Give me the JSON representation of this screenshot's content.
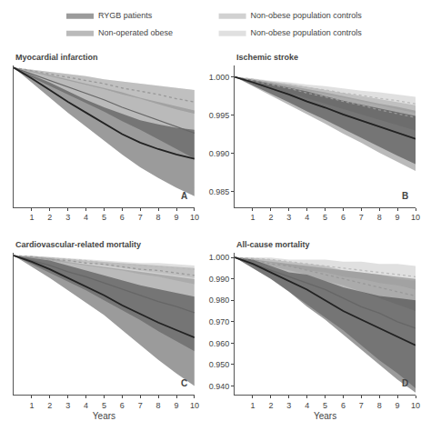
{
  "chart_data": [
    {
      "type": "line",
      "title": "Myocardial infarction",
      "annotations": [
        "A"
      ],
      "legend": "top",
      "grid": false,
      "tick_labels": "x",
      "x": [
        0,
        1,
        2,
        3,
        4,
        5,
        6,
        7,
        8,
        9,
        10
      ],
      "xlim": [
        0,
        10
      ],
      "xticks": [
        1,
        2,
        3,
        4,
        5,
        6,
        7,
        8,
        9,
        10
      ],
      "ylim": [
        0.87,
        1.002
      ],
      "series": [
        {
          "name": "RYGB patients",
          "color": "#222222",
          "line_style": "solid",
          "values": [
            1.0,
            0.99,
            0.979,
            0.968,
            0.958,
            0.948,
            0.938,
            0.93,
            0.924,
            0.919,
            0.915
          ],
          "lower": [
            1.0,
            0.986,
            0.972,
            0.958,
            0.945,
            0.932,
            0.919,
            0.907,
            0.897,
            0.888,
            0.88
          ],
          "upper": [
            1.0,
            0.993,
            0.986,
            0.978,
            0.97,
            0.963,
            0.957,
            0.951,
            0.947,
            0.944,
            0.942
          ]
        },
        {
          "name": "Non-obese population controls",
          "color": "#999999",
          "line_style": "dotted",
          "values": [
            1.0,
            0.997,
            0.994,
            0.991,
            0.988,
            0.985,
            0.981,
            0.978,
            0.975,
            0.971,
            0.968
          ],
          "lower": [
            1.0,
            0.996,
            0.992,
            0.988,
            0.984,
            0.98,
            0.975,
            0.971,
            0.966,
            0.961,
            0.957
          ],
          "upper": [
            1.0,
            0.998,
            0.996,
            0.994,
            0.992,
            0.989,
            0.987,
            0.985,
            0.983,
            0.981,
            0.979
          ]
        },
        {
          "name": "Non-operated obese",
          "color": "#666666",
          "line_style": "solid",
          "values": [
            1.0,
            0.994,
            0.988,
            0.982,
            0.976,
            0.97,
            0.963,
            0.957,
            0.951,
            0.945,
            0.939
          ],
          "lower": [
            1.0,
            0.991,
            0.983,
            0.975,
            0.967,
            0.959,
            0.95,
            0.942,
            0.933,
            0.924,
            0.915
          ],
          "upper": [
            1.0,
            0.997,
            0.993,
            0.989,
            0.985,
            0.981,
            0.977,
            0.972,
            0.968,
            0.964,
            0.96
          ]
        },
        {
          "name": "Non-obese population controls",
          "color": "#bbbbbb",
          "line_style": "dotted",
          "values": [
            1.0,
            0.997,
            0.994,
            0.991,
            0.988,
            0.985,
            0.981,
            0.978,
            0.975,
            0.971,
            0.968
          ],
          "lower": [
            1.0,
            0.996,
            0.992,
            0.988,
            0.984,
            0.98,
            0.975,
            0.971,
            0.966,
            0.961,
            0.957
          ],
          "upper": [
            1.0,
            0.998,
            0.996,
            0.994,
            0.992,
            0.989,
            0.987,
            0.985,
            0.983,
            0.981,
            0.979
          ]
        }
      ]
    },
    {
      "type": "line",
      "title": "Ischemic stroke",
      "annotations": [
        "B"
      ],
      "grid": false,
      "x": [
        0,
        1,
        2,
        3,
        4,
        5,
        6,
        7,
        8,
        9,
        10
      ],
      "xlim": [
        0,
        10
      ],
      "xticks": [
        1,
        2,
        3,
        4,
        5,
        6,
        7,
        8,
        9,
        10
      ],
      "ylim": [
        0.983,
        1.0015
      ],
      "yticks": [
        {
          "value": 1.0,
          "label": "1.000"
        },
        0.995,
        {
          "value": 0.99,
          "label": "0.990"
        },
        0.985
      ],
      "series": [
        {
          "name": "RYGB patients",
          "color": "#222222",
          "line_style": "solid",
          "values": [
            1.0,
            0.9993,
            0.9985,
            0.9977,
            0.9968,
            0.996,
            0.9951,
            0.9943,
            0.9935,
            0.9927,
            0.9919
          ],
          "lower": [
            1.0,
            0.9989,
            0.9978,
            0.9967,
            0.9955,
            0.9944,
            0.9932,
            0.992,
            0.9908,
            0.9897,
            0.9886
          ],
          "upper": [
            1.0,
            0.9996,
            0.9991,
            0.9986,
            0.9981,
            0.9975,
            0.9969,
            0.9964,
            0.9959,
            0.9954,
            0.9949
          ]
        },
        {
          "name": "Non-obese population controls",
          "color": "#999999",
          "line_style": "dotted",
          "values": [
            1.0,
            0.9995,
            0.999,
            0.9985,
            0.9979,
            0.9974,
            0.9968,
            0.9963,
            0.9957,
            0.9952,
            0.9947
          ],
          "lower": [
            1.0,
            0.9993,
            0.9986,
            0.9979,
            0.9972,
            0.9965,
            0.9958,
            0.9951,
            0.9944,
            0.9937,
            0.993
          ],
          "upper": [
            1.0,
            0.9997,
            0.9994,
            0.9991,
            0.9987,
            0.9983,
            0.9979,
            0.9975,
            0.9971,
            0.9967,
            0.9963
          ]
        },
        {
          "name": "Non-operated obese",
          "color": "#666666",
          "line_style": "solid",
          "values": [
            1.0,
            0.9993,
            0.9985,
            0.9977,
            0.9968,
            0.996,
            0.9951,
            0.9943,
            0.9935,
            0.9927,
            0.9919
          ],
          "lower": [
            1.0,
            0.9988,
            0.9976,
            0.9964,
            0.9951,
            0.9939,
            0.9926,
            0.9914,
            0.9901,
            0.9889,
            0.9877
          ],
          "upper": [
            1.0,
            0.9997,
            0.9993,
            0.9989,
            0.9984,
            0.998,
            0.9975,
            0.997,
            0.9965,
            0.9961,
            0.9956
          ]
        },
        {
          "name": "Non-obese population controls",
          "color": "#bbbbbb",
          "line_style": "dotted",
          "values": [
            1.0,
            0.9997,
            0.9993,
            0.999,
            0.9986,
            0.9983,
            0.9979,
            0.9976,
            0.9972,
            0.9969,
            0.9965
          ],
          "lower": [
            1.0,
            0.9996,
            0.9991,
            0.9987,
            0.9982,
            0.9978,
            0.9973,
            0.9968,
            0.9963,
            0.9958,
            0.9953
          ],
          "upper": [
            1.0,
            0.9998,
            0.9995,
            0.9993,
            0.999,
            0.9988,
            0.9985,
            0.9982,
            0.998,
            0.9977,
            0.9974
          ]
        }
      ]
    },
    {
      "type": "line",
      "title": "Cardiovascular-related mortality",
      "annotations": [
        "C"
      ],
      "grid": false,
      "tick_labels": "x",
      "xlabel": "Years",
      "x": [
        0,
        1,
        2,
        3,
        4,
        5,
        6,
        7,
        8,
        9,
        10
      ],
      "xlim": [
        0,
        10
      ],
      "xticks": [
        1,
        2,
        3,
        4,
        5,
        6,
        7,
        8,
        9,
        10
      ],
      "ylim": [
        0.888,
        1.002
      ],
      "series": [
        {
          "name": "RYGB patients",
          "color": "#222222",
          "line_style": "solid",
          "values": [
            1.0,
            0.995,
            0.989,
            0.982,
            0.975,
            0.968,
            0.96,
            0.953,
            0.946,
            0.94,
            0.934
          ],
          "lower": [
            1.0,
            0.991,
            0.982,
            0.972,
            0.962,
            0.952,
            0.94,
            0.928,
            0.916,
            0.905,
            0.895
          ],
          "upper": [
            1.0,
            0.998,
            0.996,
            0.992,
            0.988,
            0.984,
            0.98,
            0.976,
            0.973,
            0.97,
            0.967
          ]
        },
        {
          "name": "Non-obese population controls",
          "color": "#999999",
          "line_style": "dotted",
          "values": [
            1.0,
            0.999,
            0.997,
            0.996,
            0.994,
            0.993,
            0.991,
            0.989,
            0.988,
            0.986,
            0.984
          ],
          "lower": [
            1.0,
            0.998,
            0.996,
            0.994,
            0.992,
            0.99,
            0.988,
            0.985,
            0.983,
            0.98,
            0.977
          ],
          "upper": [
            1.0,
            0.9997,
            0.9985,
            0.997,
            0.996,
            0.995,
            0.994,
            0.993,
            0.992,
            0.991,
            0.99
          ]
        },
        {
          "name": "Non-operated obese",
          "color": "#666666",
          "line_style": "solid",
          "values": [
            1.0,
            0.996,
            0.992,
            0.987,
            0.983,
            0.978,
            0.973,
            0.968,
            0.963,
            0.959,
            0.954
          ],
          "lower": [
            1.0,
            0.993,
            0.986,
            0.979,
            0.972,
            0.964,
            0.956,
            0.948,
            0.939,
            0.931,
            0.923
          ],
          "upper": [
            1.0,
            0.999,
            0.998,
            0.995,
            0.993,
            0.991,
            0.989,
            0.987,
            0.985,
            0.983,
            0.981
          ]
        },
        {
          "name": "Non-obese population controls",
          "color": "#bbbbbb",
          "line_style": "dotted",
          "values": [
            1.0,
            0.999,
            0.998,
            0.997,
            0.996,
            0.994,
            0.993,
            0.992,
            0.991,
            0.99,
            0.989
          ],
          "lower": [
            1.0,
            0.998,
            0.997,
            0.995,
            0.994,
            0.992,
            0.99,
            0.988,
            0.986,
            0.984,
            0.982
          ],
          "upper": [
            1.0,
            0.9998,
            0.999,
            0.998,
            0.997,
            0.996,
            0.995,
            0.994,
            0.994,
            0.993,
            0.992
          ]
        }
      ]
    },
    {
      "type": "line",
      "title": "All-cause mortality",
      "annotations": [
        "D"
      ],
      "grid": false,
      "xlabel": "Years",
      "x": [
        0,
        1,
        2,
        3,
        4,
        5,
        6,
        7,
        8,
        9,
        10
      ],
      "xlim": [
        0,
        10
      ],
      "xticks": [
        1,
        2,
        3,
        4,
        5,
        6,
        7,
        8,
        9,
        10
      ],
      "ylim": [
        0.936,
        1.002
      ],
      "yticks": [
        {
          "value": 1.0,
          "label": "1.000"
        },
        {
          "value": 0.99,
          "label": "0.990"
        },
        {
          "value": 0.98,
          "label": "0.980"
        },
        {
          "value": 0.97,
          "label": "0.970"
        },
        {
          "value": 0.96,
          "label": "0.960"
        },
        {
          "value": 0.95,
          "label": "0.950"
        },
        {
          "value": 0.94,
          "label": "0.940"
        }
      ],
      "series": [
        {
          "name": "RYGB patients",
          "color": "#222222",
          "line_style": "solid",
          "values": [
            1.0,
            0.997,
            0.993,
            0.989,
            0.985,
            0.98,
            0.975,
            0.971,
            0.967,
            0.963,
            0.959
          ],
          "lower": [
            1.0,
            0.995,
            0.99,
            0.984,
            0.977,
            0.971,
            0.964,
            0.957,
            0.95,
            0.943,
            0.937
          ],
          "upper": [
            1.0,
            0.999,
            0.996,
            0.993,
            0.992,
            0.989,
            0.986,
            0.984,
            0.982,
            0.981,
            0.98
          ]
        },
        {
          "name": "Non-obese population controls",
          "color": "#999999",
          "line_style": "dotted",
          "values": [
            1.0,
            0.999,
            0.997,
            0.996,
            0.994,
            0.992,
            0.99,
            0.988,
            0.986,
            0.984,
            0.982
          ],
          "lower": [
            1.0,
            0.998,
            0.996,
            0.994,
            0.992,
            0.989,
            0.987,
            0.984,
            0.981,
            0.978,
            0.975
          ],
          "upper": [
            1.0,
            0.9997,
            0.999,
            0.998,
            0.997,
            0.996,
            0.994,
            0.993,
            0.992,
            0.99,
            0.989
          ]
        },
        {
          "name": "Non-operated obese",
          "color": "#666666",
          "line_style": "solid",
          "values": [
            1.0,
            0.997,
            0.994,
            0.991,
            0.988,
            0.985,
            0.981,
            0.977,
            0.974,
            0.97,
            0.967
          ],
          "lower": [
            1.0,
            0.995,
            0.99,
            0.984,
            0.978,
            0.972,
            0.966,
            0.959,
            0.952,
            0.946,
            0.939
          ],
          "upper": [
            1.0,
            0.999,
            0.998,
            0.997,
            0.996,
            0.995,
            0.994,
            0.993,
            0.992,
            0.991,
            0.99
          ]
        },
        {
          "name": "Non-obese population controls",
          "color": "#bbbbbb",
          "line_style": "dotted",
          "values": [
            1.0,
            0.9995,
            0.999,
            0.998,
            0.997,
            0.996,
            0.995,
            0.994,
            0.993,
            0.992,
            0.991
          ],
          "lower": [
            1.0,
            0.9988,
            0.9976,
            0.996,
            0.994,
            0.993,
            0.991,
            0.99,
            0.988,
            0.987,
            0.985
          ],
          "upper": [
            1.0,
            0.9999,
            0.9999,
            0.999,
            0.999,
            0.999,
            0.998,
            0.998,
            0.997,
            0.997,
            0.996
          ]
        }
      ]
    }
  ]
}
